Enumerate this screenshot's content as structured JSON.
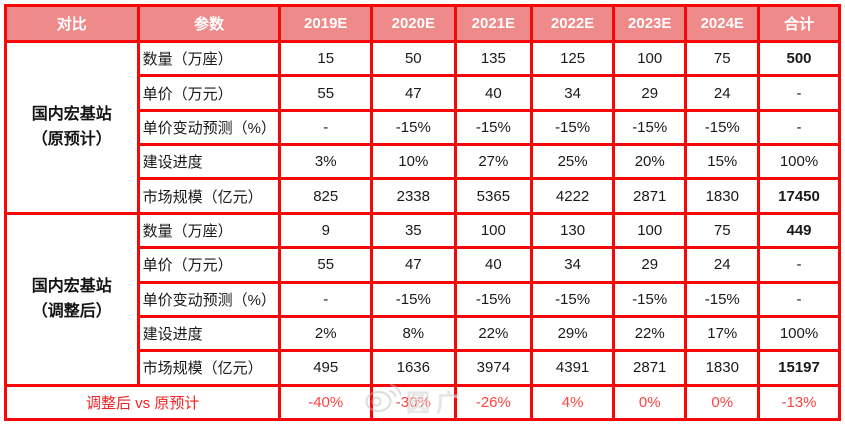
{
  "chart_data": {
    "type": "table",
    "columns": [
      "对比",
      "参数",
      "2019E",
      "2020E",
      "2021E",
      "2022E",
      "2023E",
      "2024E",
      "合计"
    ],
    "sections": [
      {
        "label_line1": "国内宏基站",
        "label_line2": "（原预计）",
        "rows": [
          {
            "param": "数量（万座）",
            "values": [
              "15",
              "50",
              "135",
              "125",
              "100",
              "75"
            ],
            "total": "500",
            "total_bold": true
          },
          {
            "param": "单价（万元）",
            "values": [
              "55",
              "47",
              "40",
              "34",
              "29",
              "24"
            ],
            "total": "-",
            "total_bold": false
          },
          {
            "param": "单价变动预测（%）",
            "values": [
              "-",
              "-15%",
              "-15%",
              "-15%",
              "-15%",
              "-15%"
            ],
            "total": "-",
            "total_bold": false
          },
          {
            "param": "建设进度",
            "values": [
              "3%",
              "10%",
              "27%",
              "25%",
              "20%",
              "15%"
            ],
            "total": "100%",
            "total_bold": false
          },
          {
            "param": "市场规模（亿元）",
            "values": [
              "825",
              "2338",
              "5365",
              "4222",
              "2871",
              "1830"
            ],
            "total": "17450",
            "total_bold": true
          }
        ]
      },
      {
        "label_line1": "国内宏基站",
        "label_line2": "（调整后）",
        "rows": [
          {
            "param": "数量（万座）",
            "values": [
              "9",
              "35",
              "100",
              "130",
              "100",
              "75"
            ],
            "total": "449",
            "total_bold": true
          },
          {
            "param": "单价（万元）",
            "values": [
              "55",
              "47",
              "40",
              "34",
              "29",
              "24"
            ],
            "total": "-",
            "total_bold": false
          },
          {
            "param": "单价变动预测（%）",
            "values": [
              "-",
              "-15%",
              "-15%",
              "-15%",
              "-15%",
              "-15%"
            ],
            "total": "-",
            "total_bold": false
          },
          {
            "param": "建设进度",
            "values": [
              "2%",
              "8%",
              "22%",
              "29%",
              "22%",
              "17%"
            ],
            "total": "100%",
            "total_bold": false
          },
          {
            "param": "市场规模（亿元）",
            "values": [
              "495",
              "1636",
              "3974",
              "4391",
              "2871",
              "1830"
            ],
            "total": "15197",
            "total_bold": true
          }
        ]
      }
    ],
    "footer": {
      "label": "调整后 vs 原预计",
      "values": [
        "-40%",
        "-30%",
        "-26%",
        "4%",
        "0%",
        "0%"
      ],
      "total": "-13%"
    }
  },
  "watermark": {
    "icon": "weibo-icon",
    "text": "圆广"
  },
  "colors": {
    "border_red": "#f70808",
    "header_bg": "#ef8a8b",
    "header_text": "#ffffff",
    "body_text": "#1a1a1a",
    "footer_label_red": "#f42222",
    "footer_value_red": "#fa4444",
    "watermark_gray": "#bebebe"
  }
}
